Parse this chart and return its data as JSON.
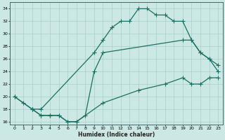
{
  "line1_x": [
    0,
    1,
    2,
    3,
    9,
    10,
    11,
    12,
    13,
    14,
    15,
    16,
    17,
    18,
    19,
    20,
    21,
    22,
    23
  ],
  "line1_y": [
    20,
    19,
    18,
    18,
    27,
    29,
    31,
    32,
    32,
    34,
    34,
    33,
    33,
    32,
    32,
    29,
    27,
    26,
    24
  ],
  "line2_x": [
    0,
    2,
    3,
    4,
    5,
    6,
    7,
    8,
    9,
    10,
    19,
    20,
    21,
    22,
    23
  ],
  "line2_y": [
    20,
    18,
    17,
    17,
    17,
    16,
    16,
    17,
    24,
    27,
    29,
    29,
    27,
    26,
    25
  ],
  "line3_x": [
    2,
    3,
    4,
    5,
    6,
    7,
    10,
    14,
    17,
    19,
    20,
    21,
    22,
    23
  ],
  "line3_y": [
    18,
    17,
    17,
    17,
    16,
    16,
    19,
    21,
    22,
    23,
    22,
    22,
    23,
    23
  ],
  "bg_color": "#cce8e4",
  "grid_color": "#aacfcb",
  "line_color": "#1a6e62",
  "xlabel": "Humidex (Indice chaleur)",
  "xlim": [
    -0.5,
    23.5
  ],
  "ylim": [
    15.5,
    35.0
  ],
  "xticks": [
    0,
    1,
    2,
    3,
    4,
    5,
    6,
    7,
    8,
    9,
    10,
    11,
    12,
    13,
    14,
    15,
    16,
    17,
    18,
    19,
    20,
    21,
    22,
    23
  ],
  "yticks": [
    16,
    18,
    20,
    22,
    24,
    26,
    28,
    30,
    32,
    34
  ],
  "xlabel_fontsize": 5.5,
  "tick_fontsize": 4.5
}
